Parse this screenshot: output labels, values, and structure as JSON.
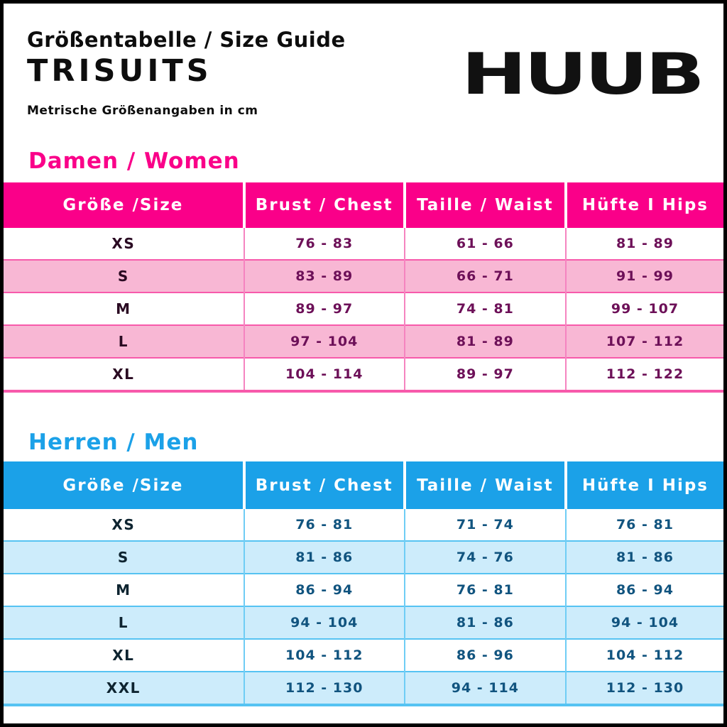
{
  "header": {
    "title": "Größentabelle / Size Guide",
    "product": "TRISUITS",
    "subtitle": "Metrische Größenangaben in cm",
    "brand": "HUUB"
  },
  "colors": {
    "women_accent": "#fa0089",
    "women_stripe": "#f8b7d4",
    "men_accent": "#1ba1e8",
    "men_stripe": "#cdecfb",
    "frame": "#000000"
  },
  "tables": [
    {
      "id": "women",
      "section_title": "Damen / Women",
      "theme": "pink",
      "columns": [
        "Größe /Size",
        "Brust / Chest",
        "Taille / Waist",
        "Hüfte I Hips"
      ],
      "rows": [
        [
          "XS",
          "76 - 83",
          "61 - 66",
          "81 - 89"
        ],
        [
          "S",
          "83 - 89",
          "66 - 71",
          "91 - 99"
        ],
        [
          "M",
          "89 - 97",
          "74 - 81",
          "99 - 107"
        ],
        [
          "L",
          "97 - 104",
          "81 - 89",
          "107 - 112"
        ],
        [
          "XL",
          "104 - 114",
          "89 - 97",
          "112 - 122"
        ]
      ]
    },
    {
      "id": "men",
      "section_title": "Herren / Men",
      "theme": "blue",
      "columns": [
        "Größe /Size",
        "Brust / Chest",
        "Taille / Waist",
        "Hüfte I Hips"
      ],
      "rows": [
        [
          "XS",
          "76 - 81",
          "71 - 74",
          "76 - 81"
        ],
        [
          "S",
          "81 - 86",
          "74 - 76",
          "81 - 86"
        ],
        [
          "M",
          "86 - 94",
          "76 - 81",
          "86 - 94"
        ],
        [
          "L",
          "94 - 104",
          "81 - 86",
          "94 - 104"
        ],
        [
          "XL",
          "104 - 112",
          "86 - 96",
          "104 - 112"
        ],
        [
          "XXL",
          "112 - 130",
          "94 - 114",
          "112 - 130"
        ]
      ]
    }
  ]
}
